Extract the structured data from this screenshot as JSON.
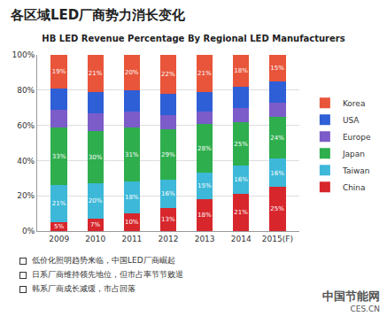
{
  "slide_title": "各区域LED厂商势力消长变化",
  "notes": [
    "低价化照明趋势来临，中国LED厂商崛起",
    "日系厂商维持领先地位，但市占率节节败退",
    "韩系厂商成长减缓，市占回落"
  ],
  "watermark": [
    "中国节能网",
    "CES.CN"
  ],
  "chart_data": {
    "type": "bar",
    "stacked": true,
    "data_labels": true,
    "grid": true,
    "legend": "right",
    "title": "HB LED Revenue Percentage By Regional LED Manufacturers",
    "categories": [
      "2009",
      "2010",
      "2011",
      "2012",
      "2013",
      "2014",
      "2015(F)"
    ],
    "ylim": [
      0,
      100
    ],
    "yticks": [
      {
        "value": 0,
        "label": "0%"
      },
      {
        "value": 20,
        "label": "20%"
      },
      {
        "value": 40,
        "label": "40%"
      },
      {
        "value": 60,
        "label": "60%"
      },
      {
        "value": 80,
        "label": "80%"
      },
      {
        "value": 100,
        "label": "100%"
      }
    ],
    "series": [
      {
        "name": "China",
        "color": "#d7262c",
        "values": [
          5,
          7,
          10,
          13,
          18,
          21,
          25
        ],
        "value_labels": [
          "5%",
          "7%",
          "10%",
          "13%",
          "18%",
          "21%",
          "25%"
        ]
      },
      {
        "name": "Taiwan",
        "color": "#3db8d8",
        "values": [
          21,
          20,
          18,
          16,
          15,
          16,
          16
        ],
        "value_labels": [
          "21%",
          "20%",
          "18%",
          "16%",
          "15%",
          "16%",
          "16%"
        ]
      },
      {
        "name": "Japan",
        "color": "#2fae4e",
        "values": [
          33,
          30,
          31,
          29,
          28,
          25,
          24
        ],
        "value_labels": [
          "33%",
          "30%",
          "31%",
          "29%",
          "28%",
          "25%",
          "24%"
        ]
      },
      {
        "name": "Europe",
        "color": "#7b5cc9",
        "values": [
          10,
          10,
          9,
          8,
          7,
          8,
          8
        ]
      },
      {
        "name": "USA",
        "color": "#2e5fd6",
        "values": [
          12,
          12,
          12,
          12,
          11,
          12,
          12
        ]
      },
      {
        "name": "Korea",
        "color": "#e8553a",
        "values": [
          19,
          21,
          20,
          22,
          21,
          18,
          15
        ],
        "value_labels": [
          "19%",
          "21%",
          "20%",
          "22%",
          "21%",
          "18%",
          "15%"
        ]
      }
    ]
  }
}
